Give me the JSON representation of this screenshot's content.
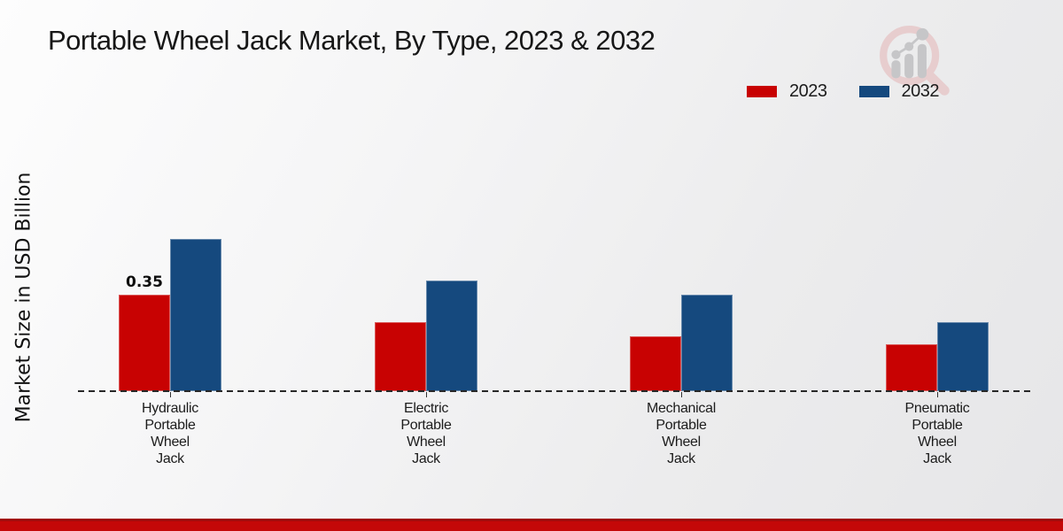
{
  "title": "Portable Wheel Jack Market, By Type, 2023 & 2032",
  "ylabel": "Market Size in USD Billion",
  "legend": {
    "items": [
      {
        "label": "2023",
        "color": "#c80202"
      },
      {
        "label": "2032",
        "color": "#15497e"
      }
    ]
  },
  "logo_icon": "magnifier-bar-chart-watermark-icon",
  "colors": {
    "accent_red": "#c80202",
    "accent_blue": "#15497e",
    "footer_red": "#c40808",
    "baseline": "#282828"
  },
  "footer": {
    "bar_color": "#c40808"
  },
  "chart_data": {
    "type": "bar",
    "title": "Portable Wheel Jack Market, By Type, 2023 & 2032",
    "xlabel": "",
    "ylabel": "Market Size in USD Billion",
    "categories": [
      "Hydraulic Portable Wheel Jack",
      "Electric Portable Wheel Jack",
      "Mechanical Portable Wheel Jack",
      "Pneumatic Portable Wheel Jack"
    ],
    "series": [
      {
        "name": "2023",
        "color": "#c80202",
        "values": [
          0.35,
          0.25,
          0.2,
          0.17
        ],
        "labels": [
          "0.35",
          "",
          "",
          ""
        ]
      },
      {
        "name": "2032",
        "color": "#15497e",
        "values": [
          0.55,
          0.4,
          0.35,
          0.25
        ],
        "labels": [
          "",
          "",
          "",
          ""
        ]
      }
    ],
    "ylim": [
      0,
      0.62
    ],
    "grid": false,
    "legend_position": "top-right",
    "baseline_style": "dashed",
    "unit": "USD Billion"
  }
}
